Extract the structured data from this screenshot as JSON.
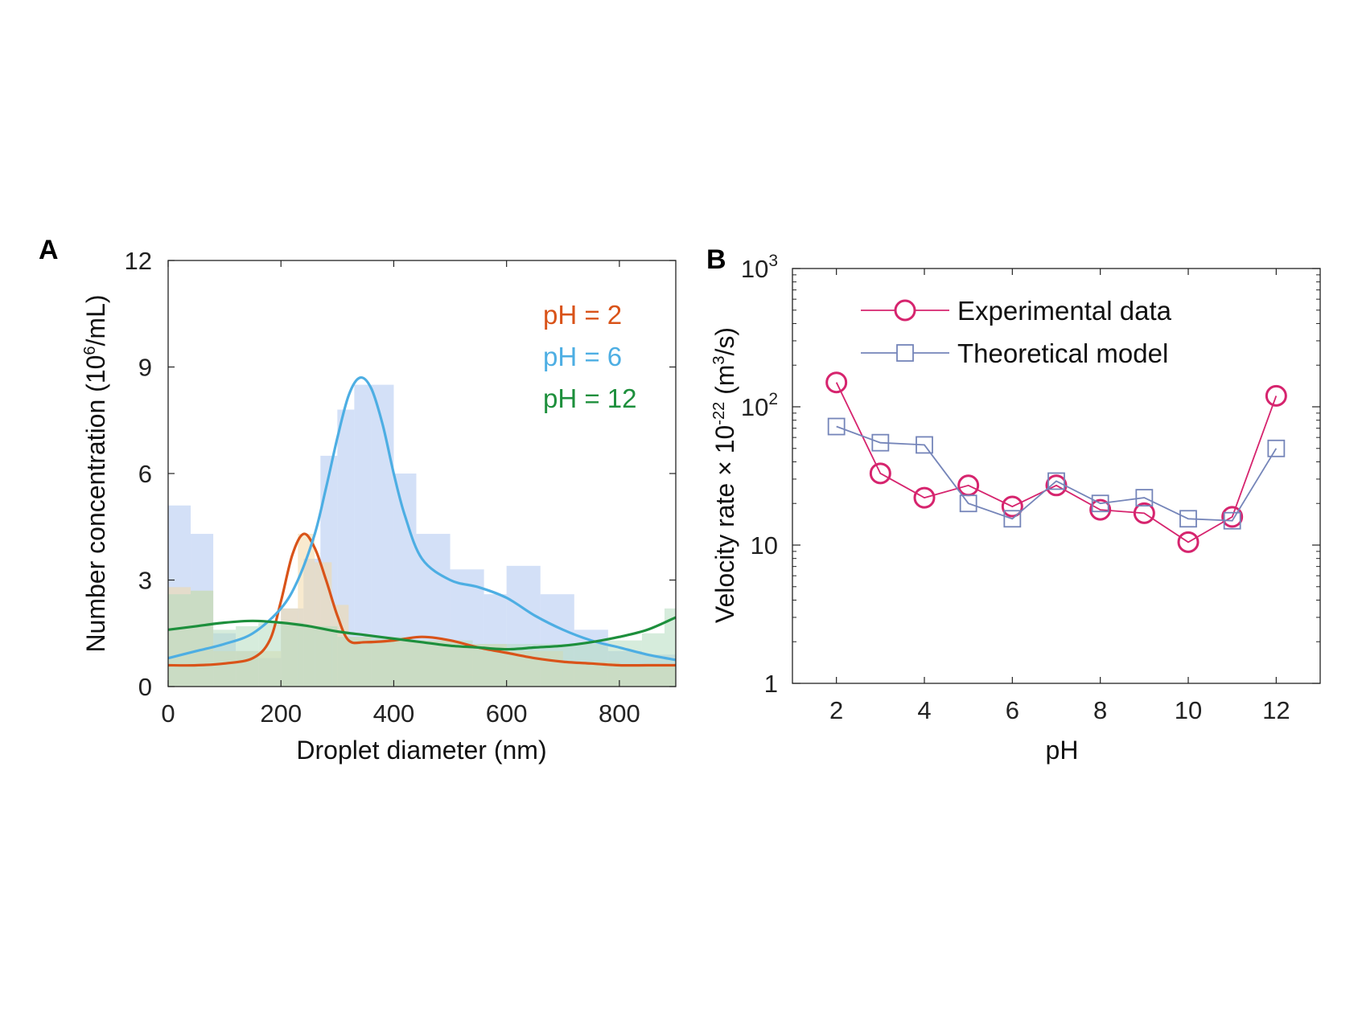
{
  "panels": {
    "a": {
      "letter": "A",
      "ylabel": "Number concentration (10",
      "ylabel_sup": "6",
      "ylabel_end": "/mL)",
      "xlabel": "Droplet diameter (nm)"
    },
    "b": {
      "letter": "B",
      "ylabel_main": "Velocity rate × 10",
      "ylabel_exp": "-22",
      "ylabel_unit": " (m",
      "ylabel_unit_sup": "3",
      "ylabel_unit_end": "/s)",
      "xlabel": "pH"
    }
  },
  "chart_data": [
    {
      "type": "line",
      "panel": "A",
      "xlabel": "Droplet diameter (nm)",
      "ylabel": "Number concentration (10^6/mL)",
      "xlim": [
        0,
        900
      ],
      "ylim": [
        0,
        12
      ],
      "xticks": [
        0,
        200,
        400,
        600,
        800
      ],
      "yticks": [
        0,
        3,
        6,
        9,
        12
      ],
      "grid": false,
      "legend_position": "top-right",
      "series": [
        {
          "name": "pH = 2",
          "color": "#d95319",
          "x": [
            0,
            50,
            100,
            150,
            180,
            200,
            220,
            240,
            260,
            280,
            300,
            320,
            350,
            400,
            450,
            500,
            550,
            600,
            650,
            700,
            750,
            800,
            850,
            900
          ],
          "y": [
            0.6,
            0.6,
            0.65,
            0.8,
            1.3,
            2.4,
            3.7,
            4.3,
            3.9,
            3.0,
            2.0,
            1.3,
            1.25,
            1.3,
            1.4,
            1.3,
            1.1,
            0.95,
            0.8,
            0.7,
            0.65,
            0.6,
            0.6,
            0.6
          ]
        },
        {
          "name": "pH = 6",
          "color": "#4daee3",
          "x": [
            0,
            50,
            100,
            150,
            200,
            230,
            260,
            280,
            300,
            320,
            340,
            360,
            380,
            400,
            420,
            450,
            500,
            550,
            600,
            650,
            700,
            750,
            800,
            850,
            900
          ],
          "y": [
            0.8,
            1.0,
            1.2,
            1.5,
            2.2,
            3.0,
            4.3,
            5.6,
            7.0,
            8.2,
            8.7,
            8.4,
            7.4,
            6.0,
            4.8,
            3.6,
            3.0,
            2.8,
            2.5,
            2.0,
            1.6,
            1.3,
            1.1,
            0.9,
            0.75
          ]
        },
        {
          "name": "pH = 12",
          "color": "#1d8f3c",
          "x": [
            0,
            50,
            100,
            150,
            200,
            250,
            300,
            350,
            400,
            450,
            500,
            550,
            600,
            650,
            700,
            750,
            800,
            850,
            900
          ],
          "y": [
            1.6,
            1.7,
            1.8,
            1.85,
            1.8,
            1.7,
            1.55,
            1.45,
            1.35,
            1.25,
            1.15,
            1.1,
            1.05,
            1.1,
            1.15,
            1.25,
            1.4,
            1.6,
            1.95
          ]
        }
      ],
      "histograms": [
        {
          "name": "pH = 6",
          "color": "#aec7f0",
          "x": [
            0,
            40,
            80,
            120,
            160,
            200,
            240,
            270,
            300,
            330,
            360,
            400,
            440,
            500,
            560,
            600,
            660,
            720,
            780,
            840
          ],
          "y": [
            5.1,
            4.3,
            1.5,
            1.0,
            0.8,
            2.2,
            3.6,
            6.5,
            7.8,
            8.5,
            8.5,
            6.0,
            4.3,
            3.3,
            2.6,
            3.4,
            2.6,
            1.6,
            1.0,
            0.9
          ]
        },
        {
          "name": "pH = 2",
          "color": "#f3d9a8",
          "x": [
            0,
            40,
            80,
            120,
            160,
            200,
            230,
            260,
            290,
            320,
            360,
            440,
            520,
            600,
            700,
            800
          ],
          "y": [
            2.8,
            2.7,
            1.0,
            1.0,
            1.0,
            2.2,
            4.3,
            3.5,
            2.3,
            1.4,
            1.3,
            1.3,
            1.2,
            1.0,
            0.7,
            0.6
          ]
        },
        {
          "name": "pH = 12",
          "color": "#b4ddc0",
          "x": [
            0,
            40,
            80,
            120,
            160,
            200,
            240,
            300,
            360,
            420,
            480,
            540,
            600,
            660,
            720,
            780,
            840,
            880
          ],
          "y": [
            2.6,
            2.7,
            1.6,
            1.7,
            1.8,
            1.8,
            1.7,
            1.4,
            1.4,
            1.3,
            1.3,
            1.2,
            1.2,
            1.2,
            1.2,
            1.3,
            1.5,
            2.2
          ]
        }
      ]
    },
    {
      "type": "line",
      "panel": "B",
      "xlabel": "pH",
      "ylabel": "Velocity rate × 10^-22 (m^3/s)",
      "xlim": [
        1,
        13
      ],
      "ylim": [
        1,
        1000
      ],
      "yscale": "log",
      "xticks": [
        2,
        4,
        6,
        8,
        10,
        12
      ],
      "yticks": [
        1,
        10,
        100,
        1000
      ],
      "ytick_labels": [
        "1",
        "10",
        "10^2",
        "10^3"
      ],
      "grid": false,
      "legend_position": "top-center",
      "series": [
        {
          "name": "Experimental data",
          "color": "#d6246e",
          "marker": "circle",
          "x": [
            2,
            3,
            4,
            5,
            6,
            7,
            8,
            9,
            10,
            11,
            12
          ],
          "y": [
            150,
            33,
            22,
            27,
            19,
            27,
            18,
            17,
            10.5,
            16,
            120
          ]
        },
        {
          "name": "Theoretical model",
          "color": "#7585b9",
          "marker": "square",
          "x": [
            2,
            3,
            4,
            5,
            6,
            7,
            8,
            9,
            10,
            11,
            12
          ],
          "y": [
            72,
            55,
            53,
            20,
            15.5,
            29,
            20,
            22,
            15.5,
            15,
            50
          ]
        }
      ]
    }
  ]
}
